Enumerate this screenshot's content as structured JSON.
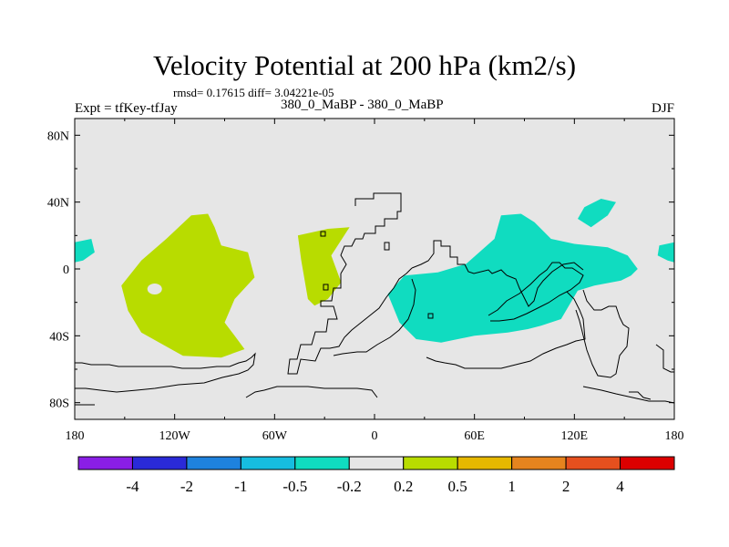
{
  "chart_data": {
    "type": "heatmap",
    "title": "Velocity Potential at 200 hPa (km2/s)",
    "stats": "rmsd= 0.17615 diff= 3.04221e-05",
    "left_label": "Expt = tfKey-tfJay",
    "center_label": "380_0_MaBP - 380_0_MaBP",
    "right_label": "DJF",
    "x_ticks": [
      "180",
      "120W",
      "60W",
      "0",
      "60E",
      "120E",
      "180"
    ],
    "x_tick_values": [
      -180,
      -120,
      -60,
      0,
      60,
      120,
      180
    ],
    "y_ticks": [
      "80N",
      "40N",
      "0",
      "40S",
      "80S"
    ],
    "y_tick_values": [
      80,
      40,
      0,
      -40,
      -80
    ],
    "xlim": [
      -180,
      180
    ],
    "ylim": [
      -90,
      90
    ],
    "colorbar": {
      "labels": [
        "-4",
        "-2",
        "-1",
        "-0.5",
        "-0.2",
        "0.2",
        "0.5",
        "1",
        "2",
        "4"
      ],
      "colors": [
        "#8a1ee6",
        "#2a2ad8",
        "#1e82de",
        "#16bde0",
        "#10dcc0",
        "#e6e6e6",
        "#b8dc00",
        "#e6b800",
        "#e6841e",
        "#e6501e",
        "#dc0000"
      ]
    },
    "regions": [
      {
        "level": "0.2 to 0.5",
        "color": "#b8dc00",
        "lonlat": [
          [
            -148,
            -25
          ],
          [
            -152,
            -10
          ],
          [
            -140,
            5
          ],
          [
            -125,
            18
          ],
          [
            -110,
            32
          ],
          [
            -100,
            33
          ],
          [
            -96,
            25
          ],
          [
            -92,
            14
          ],
          [
            -76,
            10
          ],
          [
            -72,
            -5
          ],
          [
            -84,
            -18
          ],
          [
            -90,
            -32
          ],
          [
            -84,
            -40
          ],
          [
            -78,
            -48
          ],
          [
            -92,
            -53
          ],
          [
            -115,
            -52
          ],
          [
            -140,
            -38
          ]
        ]
      },
      {
        "level": "0.2 to 0.5",
        "color": "#b8dc00",
        "lonlat": [
          [
            -46,
            20
          ],
          [
            -44,
            5
          ],
          [
            -40,
            -18
          ],
          [
            -36,
            -22
          ],
          [
            -28,
            -18
          ],
          [
            -20,
            -8
          ],
          [
            -26,
            8
          ],
          [
            -15,
            25
          ],
          [
            -28,
            24
          ]
        ]
      },
      {
        "level": "-0.5 to -0.2",
        "color": "#10dcc0",
        "lonlat": [
          [
            8,
            -15
          ],
          [
            18,
            -4
          ],
          [
            38,
            -2
          ],
          [
            55,
            3
          ],
          [
            72,
            18
          ],
          [
            76,
            32
          ],
          [
            88,
            33
          ],
          [
            96,
            28
          ],
          [
            106,
            18
          ],
          [
            120,
            15
          ],
          [
            140,
            13
          ],
          [
            152,
            8
          ],
          [
            158,
            0
          ],
          [
            154,
            -4
          ],
          [
            148,
            -7
          ],
          [
            132,
            -10
          ],
          [
            122,
            -13
          ],
          [
            112,
            -30
          ],
          [
            100,
            -34
          ],
          [
            92,
            -36
          ],
          [
            80,
            -38
          ],
          [
            60,
            -40
          ],
          [
            40,
            -44
          ],
          [
            25,
            -42
          ],
          [
            15,
            -32
          ]
        ]
      },
      {
        "level": "-0.5 to -0.2",
        "color": "#10dcc0",
        "lonlat": [
          [
            122,
            30
          ],
          [
            126,
            37
          ],
          [
            136,
            42
          ],
          [
            145,
            40
          ],
          [
            140,
            32
          ],
          [
            130,
            25
          ]
        ]
      },
      {
        "level": "-0.5 to -0.2",
        "color": "#10dcc0",
        "lonlat": [
          [
            -180,
            16
          ],
          [
            -170,
            18
          ],
          [
            -168,
            10
          ],
          [
            -175,
            5
          ],
          [
            -180,
            4
          ]
        ]
      },
      {
        "level": "-0.5 to -0.2",
        "color": "#10dcc0",
        "lonlat": [
          [
            180,
            16
          ],
          [
            171,
            14
          ],
          [
            170,
            8
          ],
          [
            176,
            5
          ],
          [
            180,
            4
          ]
        ]
      }
    ]
  }
}
